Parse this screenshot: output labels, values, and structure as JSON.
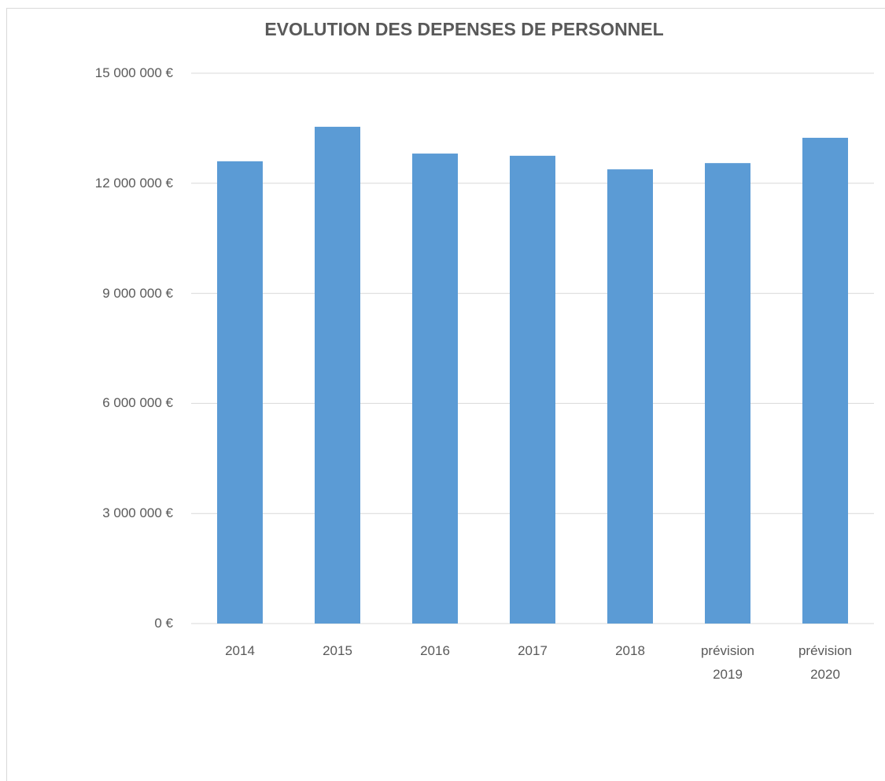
{
  "chart_data": {
    "type": "bar",
    "title": "EVOLUTION DES DEPENSES DE PERSONNEL",
    "categories": [
      "2014",
      "2015",
      "2016",
      "2017",
      "2018",
      "prévision 2019",
      "prévision 2020"
    ],
    "values": [
      12600000,
      13540000,
      12810000,
      12750000,
      12380000,
      12550000,
      13240000
    ],
    "color": "#5b9bd5",
    "ylim": [
      0,
      15000000
    ],
    "yticks": [
      {
        "value": 0,
        "label": "0 €"
      },
      {
        "value": 3000000,
        "label": "3 000 000 €"
      },
      {
        "value": 6000000,
        "label": "6 000 000 €"
      },
      {
        "value": 9000000,
        "label": "9 000 000 €"
      },
      {
        "value": 12000000,
        "label": "12 000 000 €"
      },
      {
        "value": 15000000,
        "label": "15 000 000 €"
      }
    ],
    "grid": true
  }
}
